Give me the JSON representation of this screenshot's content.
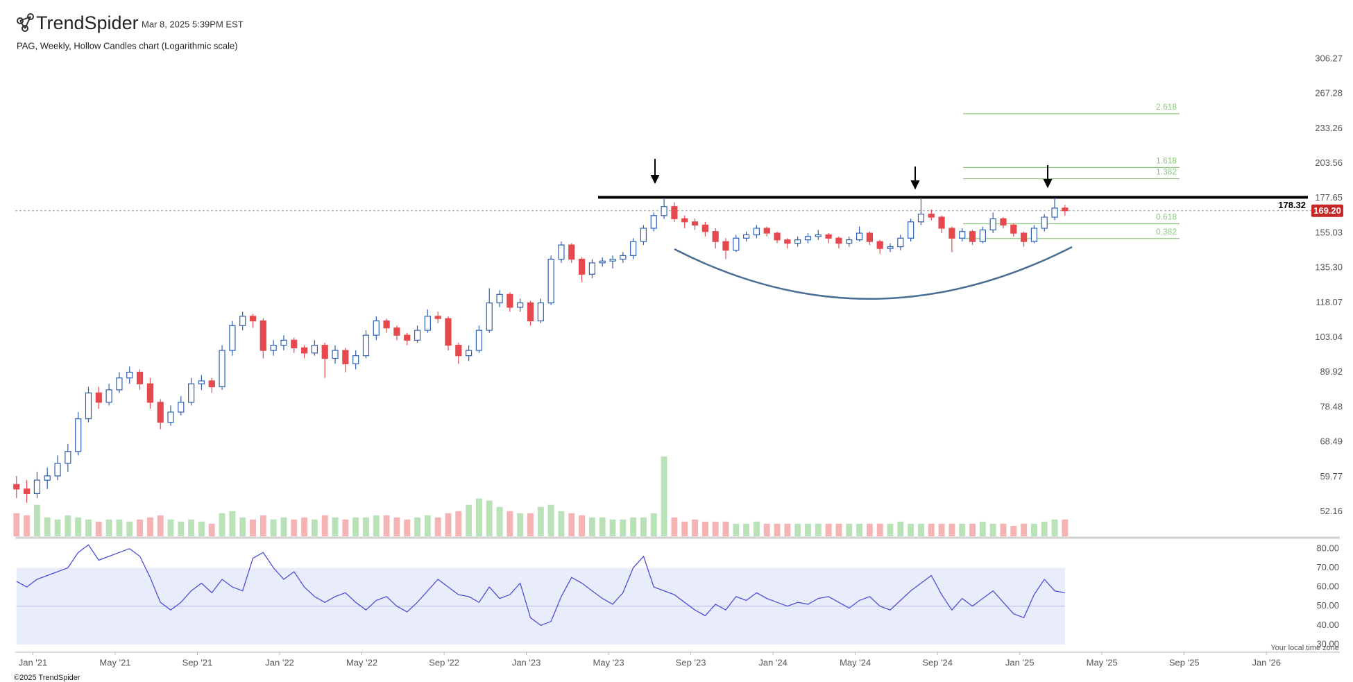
{
  "header": {
    "brand": "TrendSpider",
    "timestamp": "Mar 8, 2025 5:39PM EST"
  },
  "chart_data": {
    "type": "candlestick",
    "title": "PAG, Weekly, Hollow Candles chart (Logarithmic scale)",
    "log_scale": true,
    "x": [
      -0.8,
      -0.3,
      0.2,
      0.7,
      1.2,
      1.7,
      2.2,
      2.7,
      3.2,
      3.7,
      4.2,
      4.7,
      5.2,
      5.7,
      6.2,
      6.7,
      7.2,
      7.7,
      8.2,
      8.7,
      9.2,
      9.7,
      10.2,
      10.7,
      11.2,
      11.7,
      12.2,
      12.7,
      13.2,
      13.7,
      14.2,
      14.7,
      15.2,
      15.7,
      16.2,
      16.7,
      17.2,
      17.7,
      18.2,
      18.7,
      19.2,
      19.7,
      20.2,
      20.7,
      21.2,
      21.7,
      22.2,
      22.7,
      23.2,
      23.7,
      24.2,
      24.7,
      25.2,
      25.7,
      26.2,
      26.7,
      27.2,
      27.7,
      28.2,
      28.7,
      29.2,
      29.7,
      30.2,
      30.7,
      31.2,
      31.7,
      32.2,
      32.7,
      33.2,
      33.7,
      34.2,
      34.7,
      35.2,
      35.7,
      36.2,
      36.7,
      37.2,
      37.7,
      38.2,
      38.7,
      39.2,
      39.7,
      40.2,
      40.7,
      41.2,
      41.7,
      42.2,
      42.7,
      43.2,
      43.7,
      44.2,
      44.7,
      45.2,
      45.7,
      46.2,
      46.7,
      47.2,
      47.7,
      48.2,
      48.7,
      49.2,
      49.7,
      50.2
    ],
    "candles": [
      [
        58,
        60,
        55,
        57
      ],
      [
        57,
        59,
        54,
        56
      ],
      [
        56,
        61,
        55,
        59
      ],
      [
        59,
        62,
        57,
        60
      ],
      [
        60,
        65,
        59,
        63
      ],
      [
        63,
        68,
        61,
        66
      ],
      [
        66,
        77,
        65,
        75
      ],
      [
        75,
        85,
        74,
        83
      ],
      [
        83,
        85,
        78,
        80
      ],
      [
        80,
        86,
        79,
        84
      ],
      [
        84,
        90,
        83,
        88
      ],
      [
        88,
        92,
        86,
        90
      ],
      [
        90,
        91,
        84,
        86
      ],
      [
        86,
        88,
        78,
        80
      ],
      [
        80,
        81,
        72,
        74
      ],
      [
        74,
        79,
        73,
        77
      ],
      [
        77,
        82,
        76,
        80
      ],
      [
        80,
        88,
        79,
        86
      ],
      [
        86,
        89,
        84,
        87
      ],
      [
        87,
        88,
        83,
        85
      ],
      [
        85,
        100,
        84,
        98
      ],
      [
        98,
        110,
        96,
        108
      ],
      [
        108,
        114,
        106,
        112
      ],
      [
        112,
        113,
        107,
        110
      ],
      [
        110,
        111,
        95,
        98
      ],
      [
        98,
        102,
        96,
        100
      ],
      [
        100,
        104,
        98,
        102
      ],
      [
        102,
        103,
        97,
        99
      ],
      [
        99,
        100,
        95,
        97
      ],
      [
        97,
        102,
        96,
        100
      ],
      [
        100,
        101,
        88,
        95
      ],
      [
        95,
        100,
        93,
        98
      ],
      [
        98,
        99,
        90,
        93
      ],
      [
        93,
        98,
        91,
        96
      ],
      [
        96,
        106,
        95,
        104
      ],
      [
        104,
        112,
        102,
        110
      ],
      [
        110,
        111,
        105,
        107
      ],
      [
        107,
        108,
        102,
        104
      ],
      [
        104,
        105,
        100,
        102
      ],
      [
        102,
        108,
        101,
        106
      ],
      [
        106,
        115,
        105,
        112
      ],
      [
        112,
        114,
        109,
        111
      ],
      [
        111,
        112,
        98,
        100
      ],
      [
        100,
        101,
        93,
        96
      ],
      [
        96,
        100,
        94,
        98
      ],
      [
        98,
        108,
        97,
        106
      ],
      [
        106,
        125,
        105,
        118
      ],
      [
        118,
        124,
        116,
        122
      ],
      [
        122,
        123,
        114,
        116
      ],
      [
        116,
        120,
        114,
        118
      ],
      [
        118,
        119,
        108,
        110
      ],
      [
        110,
        120,
        109,
        118
      ],
      [
        118,
        142,
        117,
        140
      ],
      [
        140,
        150,
        138,
        148
      ],
      [
        148,
        149,
        138,
        140
      ],
      [
        140,
        141,
        128,
        132
      ],
      [
        132,
        140,
        130,
        138
      ],
      [
        138,
        141,
        136,
        139
      ],
      [
        139,
        142,
        135,
        140
      ],
      [
        140,
        144,
        138,
        142
      ],
      [
        142,
        152,
        140,
        150
      ],
      [
        150,
        160,
        148,
        158
      ],
      [
        158,
        168,
        156,
        166
      ],
      [
        166,
        178,
        164,
        172
      ],
      [
        172,
        175,
        162,
        164
      ],
      [
        164,
        166,
        158,
        162
      ],
      [
        162,
        164,
        157,
        160
      ],
      [
        160,
        162,
        153,
        156
      ],
      [
        156,
        158,
        146,
        150
      ],
      [
        150,
        152,
        140,
        145
      ],
      [
        145,
        154,
        144,
        152
      ],
      [
        152,
        156,
        150,
        154
      ],
      [
        154,
        160,
        152,
        158
      ],
      [
        158,
        159,
        153,
        155
      ],
      [
        155,
        156,
        149,
        151
      ],
      [
        151,
        152,
        146,
        149
      ],
      [
        149,
        153,
        147,
        151
      ],
      [
        151,
        155,
        149,
        153
      ],
      [
        153,
        157,
        151,
        154
      ],
      [
        154,
        155,
        149,
        152
      ],
      [
        152,
        153,
        146,
        149
      ],
      [
        149,
        153,
        147,
        151
      ],
      [
        151,
        159,
        150,
        155
      ],
      [
        155,
        156,
        148,
        150
      ],
      [
        150,
        151,
        143,
        146
      ],
      [
        146,
        149,
        144,
        147
      ],
      [
        147,
        154,
        145,
        152
      ],
      [
        152,
        164,
        150,
        162
      ],
      [
        162,
        178,
        160,
        167
      ],
      [
        167,
        170,
        163,
        165
      ],
      [
        165,
        166,
        155,
        158
      ],
      [
        158,
        159,
        144,
        152
      ],
      [
        152,
        158,
        150,
        156
      ],
      [
        156,
        157,
        148,
        150
      ],
      [
        150,
        159,
        149,
        157
      ],
      [
        157,
        168,
        155,
        164
      ],
      [
        164,
        165,
        158,
        160
      ],
      [
        160,
        161,
        153,
        155
      ],
      [
        155,
        156,
        147,
        150
      ],
      [
        150,
        160,
        149,
        158
      ],
      [
        158,
        167,
        156,
        165
      ],
      [
        165,
        178,
        163,
        171
      ],
      [
        171,
        173,
        166,
        169.2
      ]
    ],
    "volume": [
      0.55,
      0.5,
      0.75,
      0.45,
      0.4,
      0.5,
      0.45,
      0.4,
      0.35,
      0.4,
      0.4,
      0.35,
      0.4,
      0.45,
      0.5,
      0.4,
      0.35,
      0.4,
      0.35,
      0.3,
      0.55,
      0.6,
      0.45,
      0.4,
      0.5,
      0.4,
      0.45,
      0.4,
      0.45,
      0.4,
      0.5,
      0.45,
      0.4,
      0.45,
      0.45,
      0.5,
      0.5,
      0.45,
      0.4,
      0.45,
      0.5,
      0.45,
      0.55,
      0.6,
      0.75,
      0.9,
      0.85,
      0.7,
      0.6,
      0.55,
      0.55,
      0.7,
      0.75,
      0.6,
      0.55,
      0.5,
      0.45,
      0.45,
      0.4,
      0.4,
      0.45,
      0.45,
      0.55,
      1.9,
      0.45,
      0.35,
      0.4,
      0.35,
      0.35,
      0.35,
      0.3,
      0.3,
      0.35,
      0.3,
      0.3,
      0.3,
      0.3,
      0.3,
      0.3,
      0.3,
      0.3,
      0.3,
      0.3,
      0.3,
      0.3,
      0.3,
      0.35,
      0.3,
      0.3,
      0.3,
      0.3,
      0.3,
      0.3,
      0.3,
      0.35,
      0.3,
      0.3,
      0.25,
      0.3,
      0.3,
      0.35,
      0.4,
      0.4
    ],
    "rsi": [
      63,
      60,
      64,
      66,
      68,
      70,
      78,
      82,
      74,
      76,
      78,
      80,
      76,
      65,
      52,
      48,
      52,
      58,
      62,
      57,
      64,
      60,
      58,
      75,
      78,
      70,
      64,
      68,
      60,
      55,
      52,
      55,
      57,
      52,
      48,
      53,
      55,
      50,
      47,
      52,
      58,
      64,
      60,
      56,
      55,
      52,
      60,
      54,
      56,
      62,
      44,
      40,
      42,
      55,
      65,
      62,
      58,
      54,
      51,
      57,
      70,
      76,
      60,
      58,
      56,
      52,
      48,
      45,
      51,
      48,
      55,
      53,
      57,
      54,
      52,
      50,
      52,
      51,
      54,
      55,
      52,
      49,
      53,
      55,
      50,
      48,
      53,
      58,
      62,
      66,
      56,
      48,
      54,
      50,
      54,
      58,
      52,
      46,
      44,
      56,
      64,
      58,
      57
    ],
    "xlim": [
      -0.86,
      63.57
    ],
    "xticks": [
      {
        "value": 0,
        "label": "Jan '21"
      },
      {
        "value": 4,
        "label": "May '21"
      },
      {
        "value": 8,
        "label": "Sep '21"
      },
      {
        "value": 12,
        "label": "Jan '22"
      },
      {
        "value": 16,
        "label": "May '22"
      },
      {
        "value": 20,
        "label": "Sep '22"
      },
      {
        "value": 24,
        "label": "Jan '23"
      },
      {
        "value": 28,
        "label": "May '23"
      },
      {
        "value": 32,
        "label": "Sep '23"
      },
      {
        "value": 36,
        "label": "Jan '24"
      },
      {
        "value": 40,
        "label": "May '24"
      },
      {
        "value": 44,
        "label": "Sep '24"
      },
      {
        "value": 48,
        "label": "Jan '25"
      },
      {
        "value": 52,
        "label": "May '25"
      },
      {
        "value": 56,
        "label": "Sep '25"
      },
      {
        "value": 60,
        "label": "Jan '26"
      }
    ],
    "ylim": [
      47.12,
      336.8
    ],
    "yticks": [
      306.27,
      267.28,
      233.26,
      203.56,
      177.65,
      155.03,
      {
        "value": 135.3,
        "label": "135.30"
      },
      118.07,
      103.04,
      89.92,
      78.48,
      68.49,
      59.77,
      52.16
    ],
    "rsi_ylim": [
      26,
      85
    ],
    "rsi_yticks": [
      {
        "value": 80,
        "label": "80.00"
      },
      {
        "value": 70,
        "label": "70.00"
      },
      {
        "value": 60,
        "label": "60.00"
      },
      {
        "value": 50,
        "label": "50.00"
      },
      {
        "value": 40,
        "label": "40.00"
      },
      {
        "value": 30,
        "label": "30.00"
      }
    ],
    "rsi_band": [
      30,
      70
    ],
    "rsi_mid": 50,
    "resistance": {
      "price": 178.32
    },
    "last_price": {
      "value": 169.2,
      "label": "169.20"
    },
    "fib_levels": [
      {
        "ratio": 2.618,
        "price": 247.3
      },
      {
        "ratio": 1.618,
        "price": 200.4
      },
      {
        "ratio": 1.382,
        "price": 191.8
      },
      {
        "ratio": 0.618,
        "price": 160.8
      },
      {
        "ratio": 0.382,
        "price": 151.8
      }
    ],
    "colors": {
      "up": "#2f5fb3",
      "down": "#e5484d",
      "volume_up": "#b9e2b9",
      "volume_down": "#f5b3b3",
      "rsi": "#4a4fd6",
      "rsi_band": "#e9ecfb",
      "fib": "#8cc97f",
      "resistance": "#000000",
      "last_price": "#c62828"
    }
  },
  "footer": {
    "timezone": "Your local time zone",
    "copyright": "©2025 TrendSpider"
  }
}
